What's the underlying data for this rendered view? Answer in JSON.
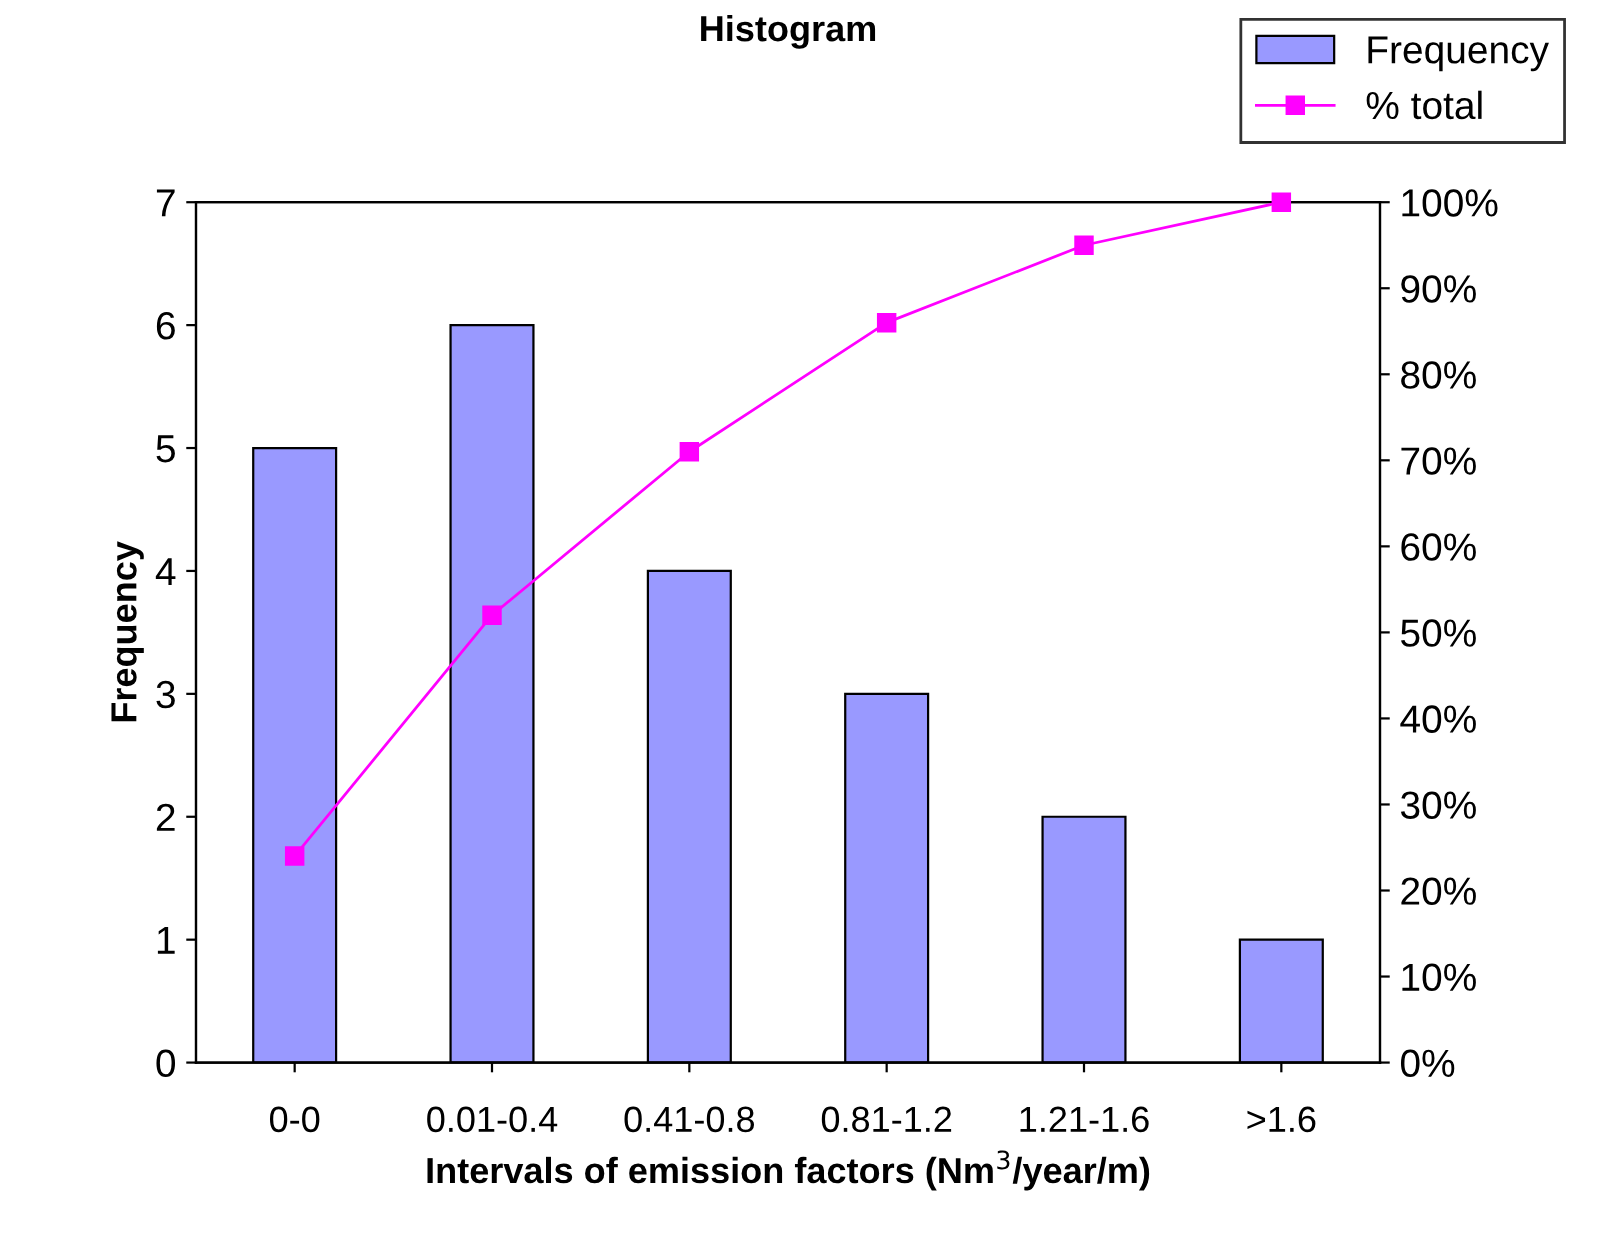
{
  "chart_data": {
    "type": "bar",
    "title": "Histogram",
    "xlabel": "Intervals of emission factors (Nm$^{3}$/year/m)",
    "ylabel": "Frequency",
    "categories": [
      "0-0",
      "0.01-0.4",
      "0.41-0.8",
      "0.81-1.2",
      "1.21-1.6",
      ">1.6"
    ],
    "series": [
      {
        "name": "Frequency",
        "color": "#9999ff",
        "values": [
          5,
          6,
          4,
          3,
          2,
          1
        ]
      },
      {
        "name": "% total",
        "type": "line",
        "axis": "y2",
        "color": "#ff00ff",
        "marker": "square",
        "values": [
          24,
          52,
          71,
          86,
          95,
          100
        ]
      }
    ],
    "ylim": [
      0,
      7
    ],
    "yticks": [
      0,
      1,
      2,
      3,
      4,
      5,
      6,
      7
    ],
    "y2lim": [
      0,
      100
    ],
    "y2ticks": [
      {
        "value": 0,
        "label": "0%"
      },
      {
        "value": 10,
        "label": "10%"
      },
      {
        "value": 20,
        "label": "20%"
      },
      {
        "value": 30,
        "label": "30%"
      },
      {
        "value": 40,
        "label": "40%"
      },
      {
        "value": 50,
        "label": "50%"
      },
      {
        "value": 60,
        "label": "60%"
      },
      {
        "value": 70,
        "label": "70%"
      },
      {
        "value": 80,
        "label": "80%"
      },
      {
        "value": 90,
        "label": "90%"
      },
      {
        "value": 100,
        "label": "100%"
      }
    ],
    "grid": false,
    "legend": "top right"
  }
}
